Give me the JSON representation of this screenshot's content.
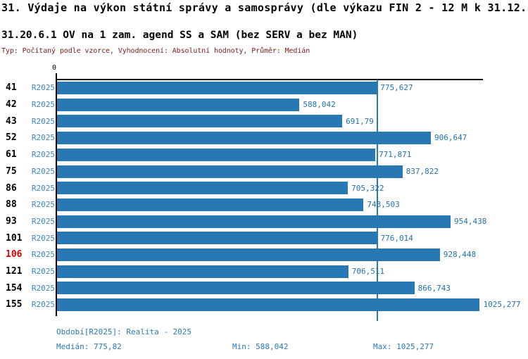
{
  "header": {
    "title": "31. Výdaje na výkon státní správy a samosprávy (dle výkazu FIN 2 - 12 M k 31.12.)",
    "subtitle": "31.20.6.1 OV na 1 zam. agend SS a SAM (bez SERV a bez MAN)",
    "meta": "Typ: Počítaný podle vzorce, Vyhodnocení: Absolutní hodnoty, Průměr: Medián"
  },
  "chart_data": {
    "type": "bar",
    "orientation": "horizontal",
    "title": "31.20.6.1 OV na 1 zam. agend SS a SAM (bez SERV a bez MAN)",
    "categories": [
      "41",
      "42",
      "43",
      "52",
      "61",
      "75",
      "86",
      "88",
      "93",
      "101",
      "106",
      "121",
      "154",
      "155"
    ],
    "period_label": "R2025",
    "values": [
      775.627,
      588.042,
      691.79,
      906.647,
      771.871,
      837.822,
      705.322,
      743.503,
      954.438,
      776.014,
      928.448,
      706.511,
      866.743,
      1025.277
    ],
    "value_labels": [
      "775,627",
      "588,042",
      "691,79",
      "906,647",
      "771,871",
      "837,822",
      "705,322",
      "743,503",
      "954,438",
      "776,014",
      "928,448",
      "706,511",
      "866,743",
      "1025,277"
    ],
    "highlighted_category": "106",
    "median_value": 775.82,
    "axis": {
      "origin_label": "0",
      "xlim": [
        0,
        1033
      ],
      "grid": false
    },
    "legend": "none",
    "colors": {
      "bar": "#2878b4",
      "median_line": "#2878b4",
      "highlight": "#e00000",
      "value_text": "#2272ae",
      "period_text": "#3a85c2",
      "footer_text": "#2b7ab8",
      "meta_text": "#7b1b1b"
    }
  },
  "footer": {
    "period_line": "Období[R2025]: Realita - 2025",
    "median": "Medián: 775,82",
    "min": "Min: 588,042",
    "max": "Max: 1025,277"
  }
}
